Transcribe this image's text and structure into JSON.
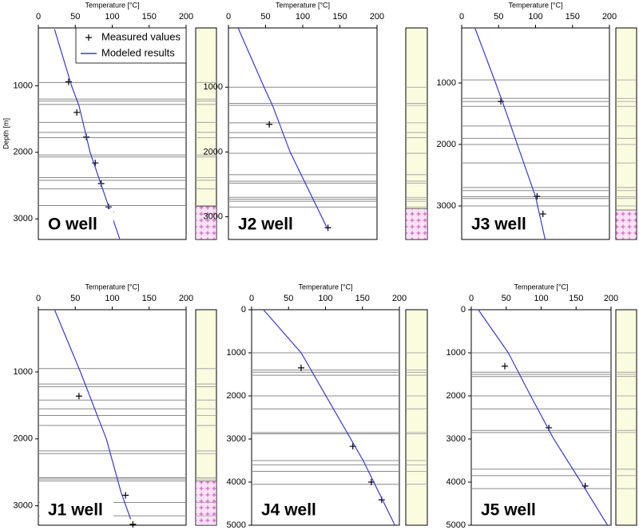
{
  "chart_data": [
    {
      "type": "line",
      "xlabel": "Temperature [°C]",
      "ylabel": "Depth [m]",
      "annotation": "O well",
      "xlim": [
        0,
        200
      ],
      "xticks": [
        0,
        50,
        100,
        150,
        200
      ],
      "ylim": [
        130,
        3310
      ],
      "yticks": [
        1000,
        2000,
        3000
      ],
      "y_inverted": true,
      "legend": "upper right",
      "layers": [
        950,
        1200,
        1230,
        1280,
        1550,
        1700,
        1780,
        2040,
        2070,
        2380,
        2420,
        2550,
        2800
      ],
      "basement_top": 2810,
      "series": [
        {
          "name": "Measured values",
          "marker": "+",
          "color": "#000000",
          "x": [
            41,
            52,
            65,
            77,
            85,
            95,
            98
          ],
          "y": [
            940,
            1400,
            1770,
            2160,
            2470,
            2820,
            2900
          ]
        },
        {
          "name": "Modeled results",
          "marker": "line",
          "color": "#3a3acc",
          "x": [
            22,
            45,
            55,
            70,
            110
          ],
          "y": [
            150,
            1000,
            1300,
            2000,
            3300
          ]
        }
      ]
    },
    {
      "type": "line",
      "xlabel": "Temperature [°C]",
      "annotation": "J2 well",
      "xlim": [
        0,
        200
      ],
      "xticks": [
        0,
        50,
        100,
        150,
        200
      ],
      "ylim": [
        85,
        3350
      ],
      "yticks": [
        1000,
        2000,
        3000
      ],
      "y_inverted": true,
      "layers": [
        1000,
        1250,
        1280,
        1550,
        1700,
        1780,
        2020,
        2350,
        2450,
        2480,
        2700,
        2730,
        2760,
        2850
      ],
      "basement_top": 2875,
      "series": [
        {
          "marker": "+",
          "color": "#000000",
          "x": [
            55,
            134
          ],
          "y": [
            1573,
            3170
          ]
        },
        {
          "marker": "line",
          "color": "#3a3acc",
          "x": [
            13,
            48,
            60,
            83,
            134
          ],
          "y": [
            85,
            1000,
            1300,
            2000,
            3200
          ]
        }
      ]
    },
    {
      "type": "line",
      "xlabel": "Temperature [°C]",
      "annotation": "J3 well",
      "xlim": [
        0,
        200
      ],
      "xticks": [
        0,
        50,
        100,
        150,
        200
      ],
      "ylim": [
        104,
        3545
      ],
      "yticks": [
        1000,
        2000,
        3000
      ],
      "y_inverted": true,
      "layers": [
        950,
        1250,
        1300,
        1380,
        1700,
        1900,
        2000,
        2300,
        2700,
        2750,
        2850,
        2880,
        3000
      ],
      "basement_top": 3065,
      "series": [
        {
          "marker": "+",
          "color": "#000000",
          "x": [
            53,
            102,
            110
          ],
          "y": [
            1300,
            2844,
            3130
          ]
        },
        {
          "marker": "line",
          "color": "#3a3acc",
          "x": [
            18,
            46,
            55,
            100,
            113
          ],
          "y": [
            104,
            1000,
            1300,
            2850,
            3545
          ]
        }
      ]
    },
    {
      "type": "line",
      "xlabel": "Temperature [°C]",
      "annotation": "J1 well",
      "xlim": [
        0,
        200
      ],
      "xticks": [
        0,
        50,
        100,
        150,
        200
      ],
      "ylim": [
        70,
        3290
      ],
      "yticks": [
        1000,
        2000,
        3000
      ],
      "y_inverted": true,
      "layers": [
        950,
        1180,
        1220,
        1420,
        1550,
        1650,
        1800,
        2180,
        2220,
        2580,
        2600,
        2630,
        2950,
        3150
      ],
      "basement_top": 2627,
      "series": [
        {
          "marker": "+",
          "color": "#000000",
          "x": [
            55,
            118,
            128
          ],
          "y": [
            1361,
            2843,
            3277
          ]
        },
        {
          "marker": "line",
          "color": "#3a3acc",
          "x": [
            22,
            57,
            92,
            112,
            125
          ],
          "y": [
            70,
            1000,
            2000,
            2800,
            3200
          ]
        }
      ]
    },
    {
      "type": "line",
      "xlabel": "Temperature [°C]",
      "annotation": "J4 well",
      "xlim": [
        0,
        200
      ],
      "xticks": [
        0,
        50,
        100,
        150,
        200
      ],
      "ylim": [
        0,
        5000
      ],
      "yticks": [
        0,
        1000,
        2000,
        3000,
        4000,
        5000
      ],
      "y_inverted": true,
      "layers": [
        1000,
        1400,
        1450,
        1520,
        2000,
        2300,
        2850,
        2880,
        3500,
        3600,
        3750,
        4050
      ],
      "series": [
        {
          "marker": "+",
          "color": "#000000",
          "x": [
            67,
            137,
            162,
            176
          ],
          "y": [
            1350,
            3170,
            4000,
            4410
          ]
        },
        {
          "marker": "line",
          "color": "#3a3acc",
          "x": [
            16,
            67,
            151,
            194
          ],
          "y": [
            0,
            1000,
            3500,
            5000
          ]
        }
      ]
    },
    {
      "type": "line",
      "xlabel": "Temperature [°C]",
      "annotation": "J5 well",
      "xlim": [
        0,
        200
      ],
      "xticks": [
        0,
        50,
        100,
        150,
        200
      ],
      "ylim": [
        0,
        5000
      ],
      "yticks": [
        0,
        1000,
        2000,
        3000,
        4000,
        5000
      ],
      "y_inverted": true,
      "layers": [
        1000,
        1450,
        1500,
        1550,
        2000,
        2300,
        2800,
        2850,
        3700,
        3850,
        4150
      ],
      "series": [
        {
          "marker": "+",
          "color": "#000000",
          "x": [
            48,
            111,
            163
          ],
          "y": [
            1310,
            2740,
            4090
          ]
        },
        {
          "marker": "line",
          "color": "#3a3acc",
          "x": [
            10,
            53,
            85,
            118,
            157,
            195
          ],
          "y": [
            0,
            1000,
            2000,
            3000,
            4000,
            5000
          ]
        }
      ]
    }
  ]
}
